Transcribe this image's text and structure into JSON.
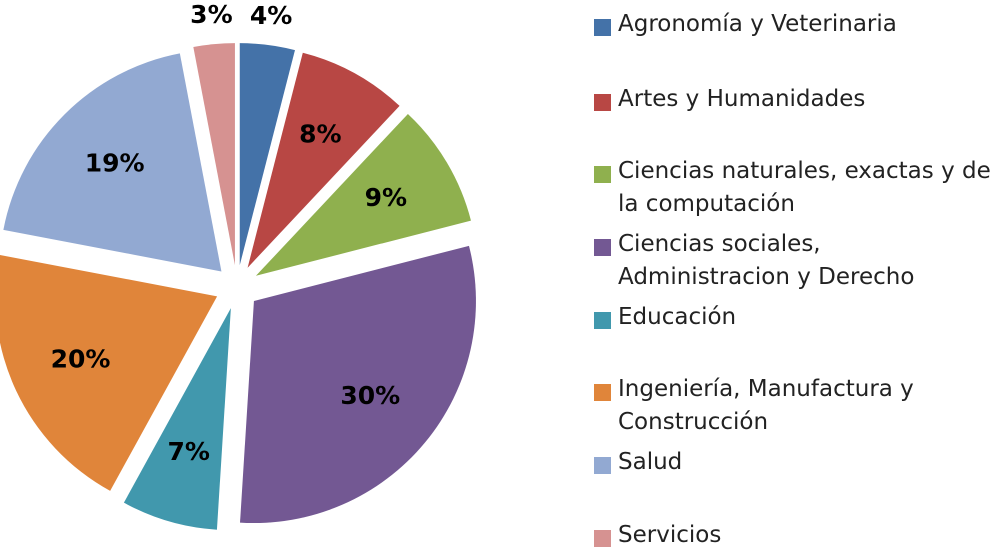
{
  "chart_data": {
    "type": "pie",
    "categories": [
      "Agronomía y Veterinaria",
      "Artes y Humanidades",
      "Ciencias naturales, exactas y de la computación",
      "Ciencias sociales, Administracion y Derecho",
      "Educación",
      "Ingeniería, Manufactura y Construcción",
      "Salud",
      "Servicios"
    ],
    "values": [
      4,
      8,
      9,
      30,
      7,
      20,
      19,
      3
    ],
    "value_labels": [
      "4%",
      "8%",
      "9%",
      "30%",
      "7%",
      "20%",
      "19%",
      "3%"
    ],
    "colors": [
      "#4472a8",
      "#b84744",
      "#8fb04e",
      "#735893",
      "#4198ad",
      "#e0853a",
      "#92a9d2",
      "#d69291"
    ],
    "legend": "right"
  }
}
